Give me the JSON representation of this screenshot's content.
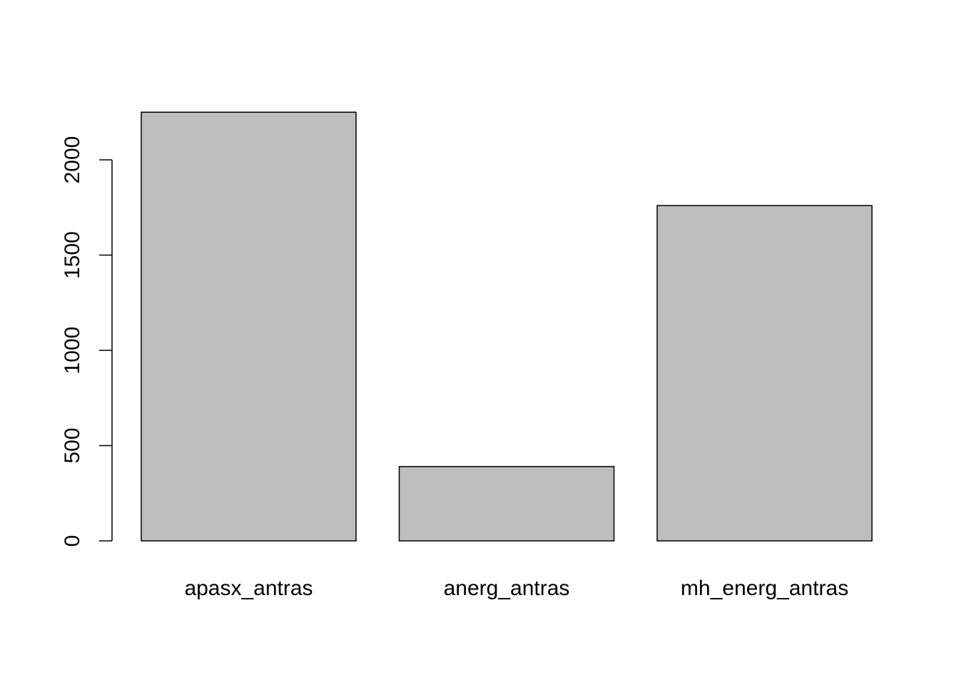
{
  "chart_data": {
    "type": "bar",
    "title": "",
    "xlabel": "",
    "ylabel": "",
    "categories": [
      "apasx_antras",
      "anerg_antras",
      "mh_energ_antras"
    ],
    "values": [
      2250,
      390,
      1760
    ],
    "ylim": [
      0,
      2250
    ],
    "yticks": [
      0,
      500,
      1000,
      1500,
      2000
    ],
    "grid": false,
    "bar_color": "#bebebe",
    "border_color": "#000000"
  }
}
